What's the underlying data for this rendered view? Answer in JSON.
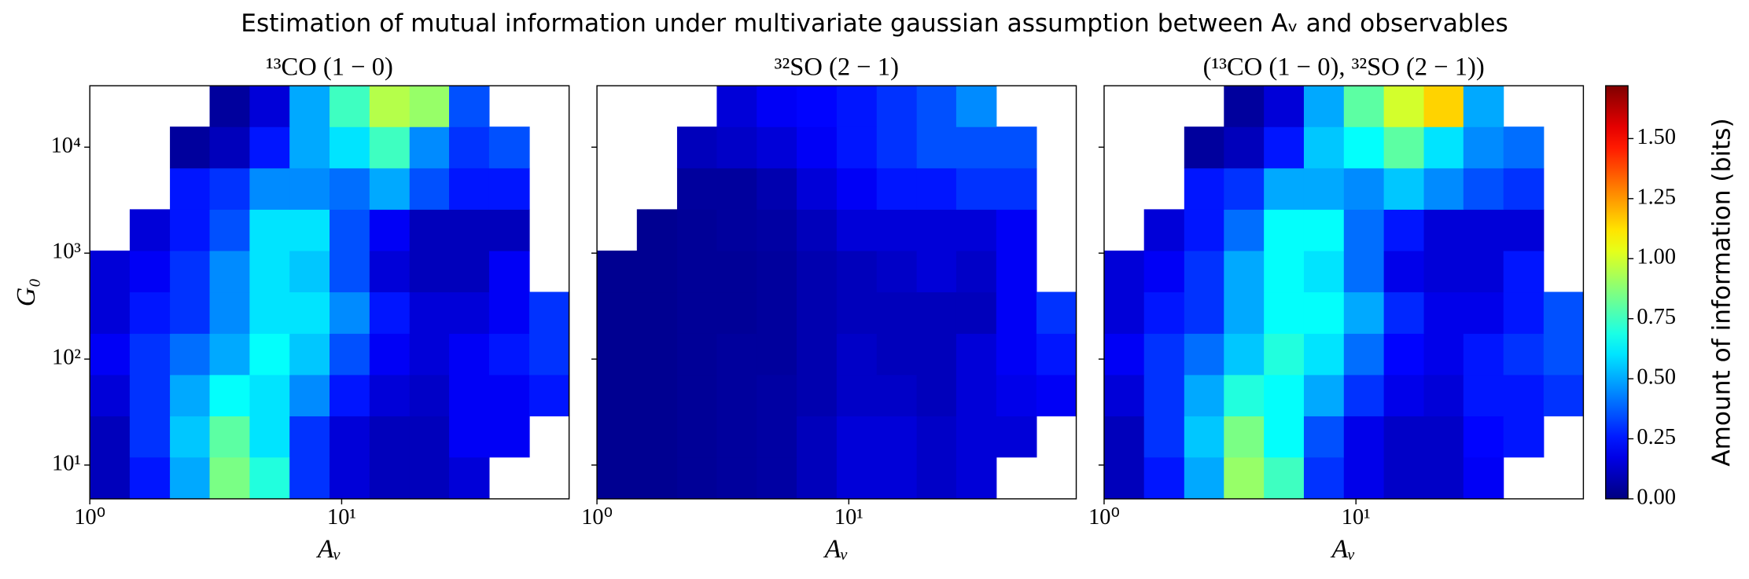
{
  "title": "Estimation of mutual information under multivariate gaussian assumption between Aᵥ and observables",
  "chart_data": [
    {
      "type": "heatmap",
      "title": "¹³CO (1 − 0)",
      "xlabel": "Aᵥ",
      "ylabel": "G₀",
      "log_x": true,
      "log_y": true,
      "xlim": [
        1,
        80
      ],
      "ylim": [
        4.8,
        38000
      ],
      "xticks": [
        {
          "value": 1,
          "label": "10⁰"
        },
        {
          "value": 10,
          "label": "10¹"
        }
      ],
      "yticks": [
        {
          "value": 10,
          "label": "10¹"
        },
        {
          "value": 100,
          "label": "10²"
        },
        {
          "value": 1000,
          "label": "10³"
        },
        {
          "value": 10000,
          "label": "10⁴"
        }
      ],
      "xbins": [
        1,
        1.44,
        2.08,
        2.99,
        4.31,
        6.21,
        8.95,
        12.9,
        18.6,
        26.7,
        38.5,
        55.6,
        80
      ],
      "ybins": [
        4.8,
        11.9,
        29.1,
        71.4,
        175,
        431,
        1057,
        2594,
        6368,
        15630,
        38000
      ],
      "values": [
        [
          0.1,
          0.25,
          0.5,
          0.85,
          0.7,
          0.3,
          0.15,
          0.1,
          0.1,
          0.15,
          null,
          null
        ],
        [
          0.1,
          0.3,
          0.55,
          0.8,
          0.6,
          0.3,
          0.15,
          0.1,
          0.1,
          0.2,
          0.2,
          null
        ],
        [
          0.15,
          0.3,
          0.5,
          0.65,
          0.6,
          0.45,
          0.25,
          0.15,
          0.12,
          0.2,
          0.2,
          0.25
        ],
        [
          0.2,
          0.3,
          0.4,
          0.5,
          0.65,
          0.55,
          0.35,
          0.2,
          0.15,
          0.2,
          0.25,
          0.3
        ],
        [
          0.15,
          0.25,
          0.3,
          0.45,
          0.6,
          0.6,
          0.45,
          0.25,
          0.15,
          0.15,
          0.2,
          0.3
        ],
        [
          0.15,
          0.2,
          0.3,
          0.45,
          0.6,
          0.55,
          0.35,
          0.15,
          0.1,
          0.1,
          0.2,
          null
        ],
        [
          null,
          0.15,
          0.25,
          0.35,
          0.6,
          0.6,
          0.35,
          0.2,
          0.1,
          0.1,
          0.1,
          null
        ],
        [
          null,
          null,
          0.25,
          0.3,
          0.45,
          0.45,
          0.4,
          0.5,
          0.35,
          0.25,
          0.25,
          null
        ],
        [
          null,
          null,
          0.05,
          0.1,
          0.25,
          0.5,
          0.6,
          0.75,
          0.45,
          0.3,
          0.35,
          null
        ],
        [
          null,
          null,
          null,
          0.05,
          0.15,
          0.5,
          0.75,
          0.95,
          0.9,
          0.35,
          null,
          null
        ]
      ]
    },
    {
      "type": "heatmap",
      "title": "³²SO (2 − 1)",
      "xlabel": "Aᵥ",
      "log_x": true,
      "log_y": true,
      "xlim": [
        1,
        80
      ],
      "ylim": [
        4.8,
        38000
      ],
      "xticks": [
        {
          "value": 1,
          "label": "10⁰"
        },
        {
          "value": 10,
          "label": "10¹"
        }
      ],
      "xbins": [
        1,
        1.44,
        2.08,
        2.99,
        4.31,
        6.21,
        8.95,
        12.9,
        18.6,
        26.7,
        38.5,
        55.6,
        80
      ],
      "ybins": [
        4.8,
        11.9,
        29.1,
        71.4,
        175,
        431,
        1057,
        2594,
        6368,
        15630,
        38000
      ],
      "values": [
        [
          0.03,
          0.03,
          0.04,
          0.05,
          0.06,
          0.1,
          0.15,
          0.15,
          0.12,
          0.15,
          null,
          null
        ],
        [
          0.03,
          0.03,
          0.04,
          0.05,
          0.06,
          0.1,
          0.15,
          0.15,
          0.12,
          0.15,
          0.15,
          null
        ],
        [
          0.03,
          0.03,
          0.04,
          0.05,
          0.06,
          0.08,
          0.12,
          0.12,
          0.1,
          0.15,
          0.18,
          0.2
        ],
        [
          0.03,
          0.03,
          0.04,
          0.05,
          0.05,
          0.08,
          0.12,
          0.1,
          0.1,
          0.15,
          0.2,
          0.25
        ],
        [
          0.03,
          0.03,
          0.04,
          0.04,
          0.05,
          0.08,
          0.1,
          0.1,
          0.1,
          0.1,
          0.2,
          0.3
        ],
        [
          0.03,
          0.03,
          0.04,
          0.04,
          0.05,
          0.08,
          0.1,
          0.12,
          0.15,
          0.12,
          0.2,
          null
        ],
        [
          null,
          0.03,
          0.04,
          0.05,
          0.06,
          0.1,
          0.15,
          0.15,
          0.15,
          0.15,
          0.2,
          null
        ],
        [
          null,
          null,
          0.05,
          0.05,
          0.08,
          0.15,
          0.2,
          0.25,
          0.25,
          0.3,
          0.3,
          null
        ],
        [
          null,
          null,
          0.1,
          0.12,
          0.15,
          0.2,
          0.25,
          0.3,
          0.35,
          0.35,
          0.35,
          null
        ],
        [
          null,
          null,
          null,
          0.15,
          0.2,
          0.22,
          0.25,
          0.3,
          0.35,
          0.45,
          null,
          null
        ]
      ]
    },
    {
      "type": "heatmap",
      "title": "(¹³CO (1 − 0), ³²SO (2 − 1))",
      "xlabel": "Aᵥ",
      "log_x": true,
      "log_y": true,
      "xlim": [
        1,
        80
      ],
      "ylim": [
        4.8,
        38000
      ],
      "xticks": [
        {
          "value": 1,
          "label": "10⁰"
        },
        {
          "value": 10,
          "label": "10¹"
        }
      ],
      "xbins": [
        1,
        1.44,
        2.08,
        2.99,
        4.31,
        6.21,
        8.95,
        12.9,
        18.6,
        26.7,
        38.5,
        55.6,
        80
      ],
      "ybins": [
        4.8,
        11.9,
        29.1,
        71.4,
        175,
        431,
        1057,
        2594,
        6368,
        15630,
        38000
      ],
      "values": [
        [
          0.1,
          0.25,
          0.5,
          0.9,
          0.75,
          0.3,
          0.18,
          0.12,
          0.12,
          0.2,
          null,
          null
        ],
        [
          0.1,
          0.3,
          0.55,
          0.85,
          0.65,
          0.35,
          0.18,
          0.12,
          0.12,
          0.22,
          0.25,
          null
        ],
        [
          0.15,
          0.3,
          0.5,
          0.7,
          0.65,
          0.5,
          0.3,
          0.18,
          0.15,
          0.25,
          0.25,
          0.3
        ],
        [
          0.2,
          0.3,
          0.4,
          0.55,
          0.7,
          0.6,
          0.4,
          0.22,
          0.18,
          0.25,
          0.3,
          0.35
        ],
        [
          0.15,
          0.25,
          0.3,
          0.5,
          0.65,
          0.65,
          0.5,
          0.28,
          0.18,
          0.18,
          0.25,
          0.35
        ],
        [
          0.15,
          0.2,
          0.3,
          0.5,
          0.65,
          0.6,
          0.4,
          0.18,
          0.15,
          0.15,
          0.25,
          null
        ],
        [
          null,
          0.15,
          0.25,
          0.4,
          0.65,
          0.65,
          0.4,
          0.25,
          0.15,
          0.15,
          0.15,
          null
        ],
        [
          null,
          null,
          0.25,
          0.3,
          0.5,
          0.5,
          0.45,
          0.55,
          0.45,
          0.35,
          0.3,
          null
        ],
        [
          null,
          null,
          0.05,
          0.1,
          0.25,
          0.55,
          0.65,
          0.8,
          0.6,
          0.45,
          0.4,
          null
        ],
        [
          null,
          null,
          null,
          0.05,
          0.15,
          0.5,
          0.8,
          1.0,
          1.15,
          0.5,
          null,
          null
        ]
      ],
      "colorbar": {
        "label": "Amount of information (bits)",
        "colormap": "jet",
        "lim": [
          0,
          1.72
        ],
        "ticks": [
          {
            "value": 0,
            "label": "0.00"
          },
          {
            "value": 0.25,
            "label": "0.25"
          },
          {
            "value": 0.5,
            "label": "0.50"
          },
          {
            "value": 0.75,
            "label": "0.75"
          },
          {
            "value": 1,
            "label": "1.00"
          },
          {
            "value": 1.25,
            "label": "1.25"
          },
          {
            "value": 1.5,
            "label": "1.50"
          }
        ]
      }
    }
  ]
}
